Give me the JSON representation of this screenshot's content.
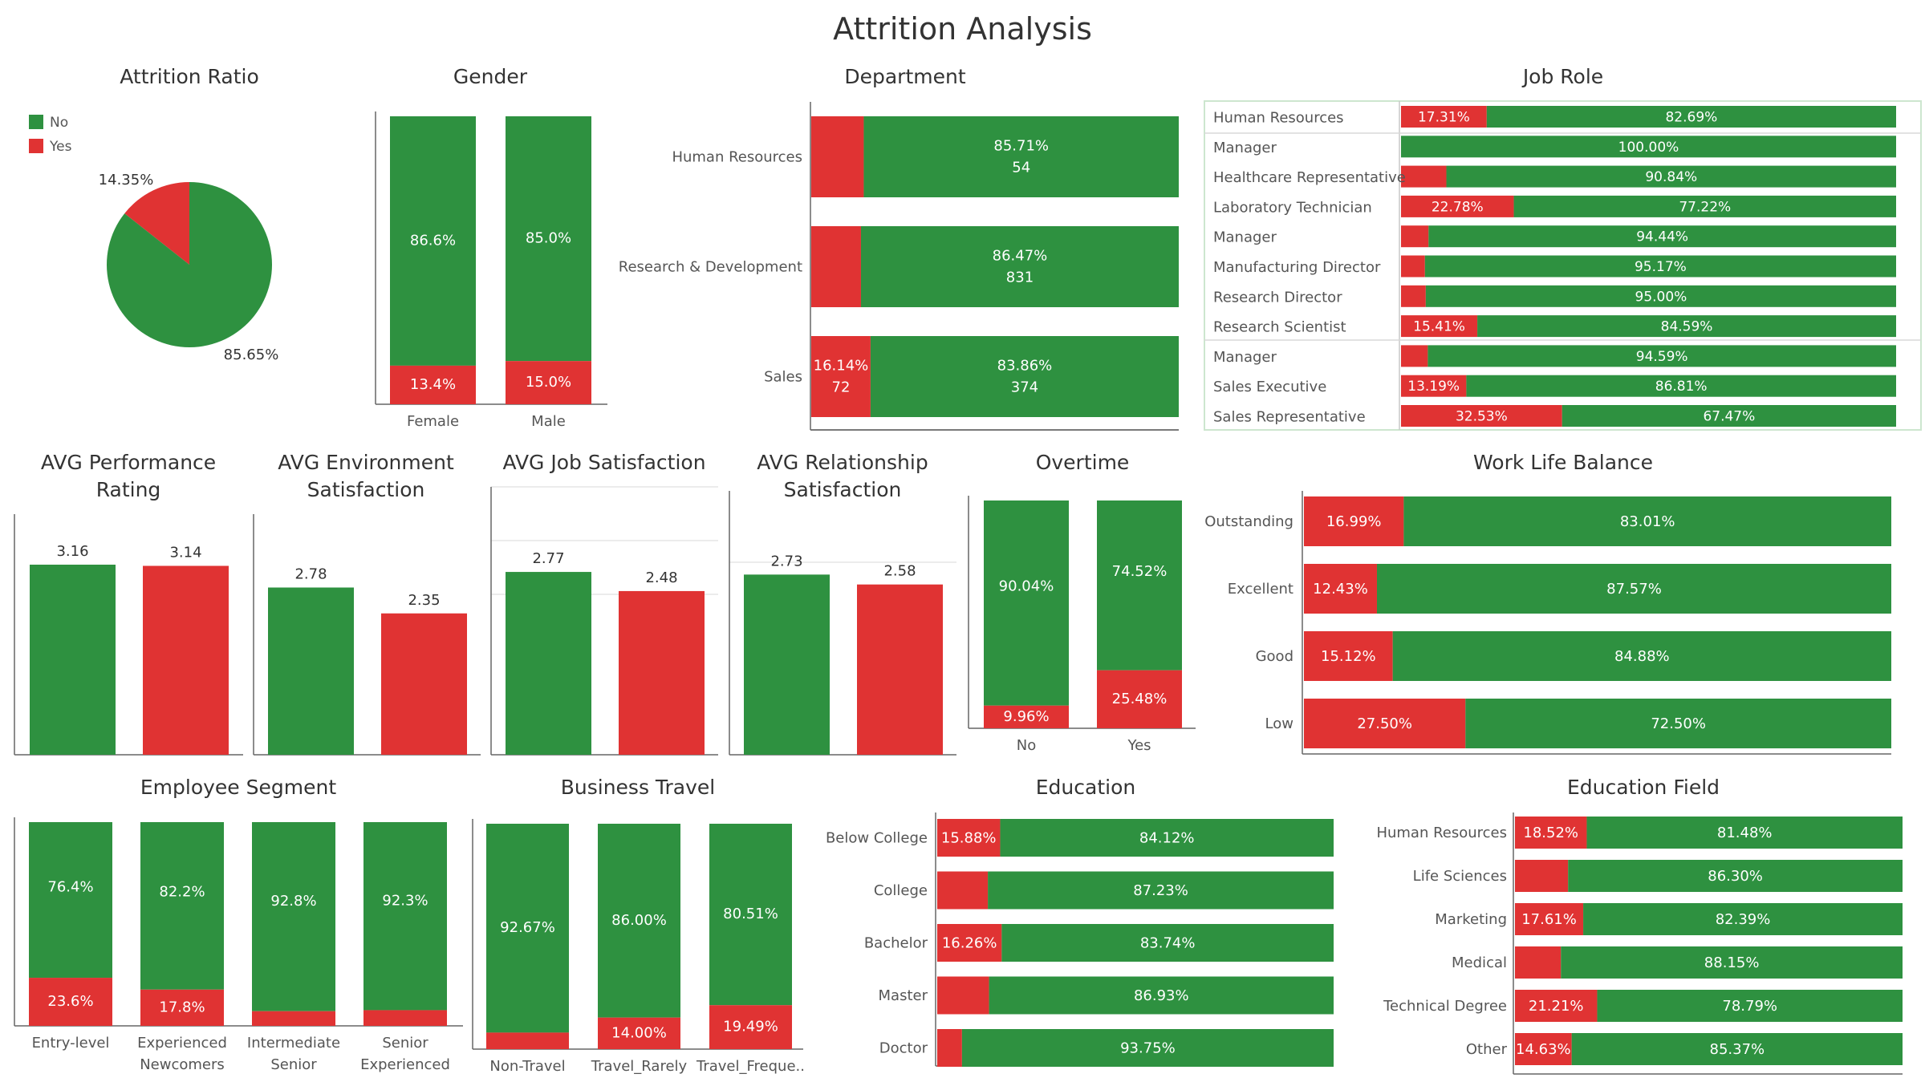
{
  "title": "Attrition Analysis",
  "colors": {
    "no": "#2e9140",
    "yes": "#e03333",
    "axis": "#666666",
    "grid": "#e6e6e6"
  },
  "chart_data": [
    {
      "id": "attrition-ratio",
      "type": "pie",
      "title": "Attrition Ratio",
      "legend": [
        "No",
        "Yes"
      ],
      "slices": [
        {
          "label": "No",
          "value": 85.65,
          "text": "85.65%"
        },
        {
          "label": "Yes",
          "value": 14.35,
          "text": "14.35%"
        }
      ]
    },
    {
      "id": "gender",
      "type": "bar",
      "stacked": true,
      "title": "Gender",
      "categories": [
        "Female",
        "Male"
      ],
      "no": [
        86.6,
        85.0
      ],
      "yes": [
        13.4,
        15.0
      ],
      "no_labels": [
        "86.6%",
        "85.0%"
      ],
      "yes_labels": [
        "13.4%",
        "15.0%"
      ]
    },
    {
      "id": "department",
      "type": "bar",
      "stacked": true,
      "orientation": "horizontal",
      "title": "Department",
      "categories": [
        "Human Resources",
        "Research & Development",
        "Sales"
      ],
      "no": [
        85.71,
        86.47,
        83.86
      ],
      "yes": [
        14.29,
        13.53,
        16.14
      ],
      "no_labels": [
        "85.71%",
        "86.47%",
        "83.86%"
      ],
      "no_counts": [
        "54",
        "831",
        "374"
      ],
      "yes_labels": [
        "",
        "",
        "16.14%"
      ],
      "yes_counts": [
        "",
        "",
        "72"
      ]
    },
    {
      "id": "job-role",
      "type": "bar",
      "stacked": true,
      "orientation": "horizontal",
      "title": "Job Role",
      "categories": [
        "Human Resources",
        "Manager",
        "Healthcare Representative",
        "Laboratory Technician",
        "Manager",
        "Manufacturing Director",
        "Research Director",
        "Research Scientist",
        "Manager",
        "Sales Executive",
        "Sales Representative"
      ],
      "no": [
        82.69,
        100.0,
        90.84,
        77.22,
        94.44,
        95.17,
        95.0,
        84.59,
        94.59,
        86.81,
        67.47
      ],
      "yes": [
        17.31,
        0,
        9.16,
        22.78,
        5.56,
        4.83,
        5.0,
        15.41,
        5.41,
        13.19,
        32.53
      ],
      "no_labels": [
        "82.69%",
        "100.00%",
        "90.84%",
        "77.22%",
        "94.44%",
        "95.17%",
        "95.00%",
        "84.59%",
        "94.59%",
        "86.81%",
        "67.47%"
      ],
      "yes_labels": [
        "17.31%",
        "",
        "",
        "22.78%",
        "",
        "",
        "",
        "15.41%",
        "",
        "13.19%",
        "32.53%"
      ]
    },
    {
      "id": "avg-performance",
      "type": "bar",
      "title": "AVG Performance Rating",
      "title_lines": [
        "AVG Performance",
        "Rating"
      ],
      "categories": [
        "No",
        "Yes"
      ],
      "values": [
        3.16,
        3.14
      ],
      "labels": [
        "3.16",
        "3.14"
      ],
      "ylim": [
        0,
        4
      ]
    },
    {
      "id": "avg-environment",
      "type": "bar",
      "title": "AVG Environment Satisfaction",
      "title_lines": [
        "AVG Environment",
        "Satisfaction"
      ],
      "categories": [
        "No",
        "Yes"
      ],
      "values": [
        2.78,
        2.35
      ],
      "labels": [
        "2.78",
        "2.35"
      ],
      "ylim": [
        0,
        4
      ]
    },
    {
      "id": "avg-job-satisfaction",
      "type": "bar",
      "title": "AVG Job Satisfaction",
      "title_lines": [
        "AVG Job Satisfaction"
      ],
      "categories": [
        "No",
        "Yes"
      ],
      "values": [
        2.77,
        2.48
      ],
      "labels": [
        "2.77",
        "2.48"
      ],
      "ylim": [
        0,
        3.5
      ]
    },
    {
      "id": "avg-relationship",
      "type": "bar",
      "title": "AVG Relationship Satisfaction",
      "title_lines": [
        "AVG Relationship",
        "Satisfaction"
      ],
      "categories": [
        "No",
        "Yes"
      ],
      "values": [
        2.73,
        2.58
      ],
      "labels": [
        "2.73",
        "2.58"
      ],
      "ylim": [
        0,
        3.5
      ]
    },
    {
      "id": "overtime",
      "type": "bar",
      "stacked": true,
      "title": "Overtime",
      "categories": [
        "No",
        "Yes"
      ],
      "no": [
        90.04,
        74.52
      ],
      "yes": [
        9.96,
        25.48
      ],
      "no_labels": [
        "90.04%",
        "74.52%"
      ],
      "yes_labels": [
        "9.96%",
        "25.48%"
      ]
    },
    {
      "id": "work-life-balance",
      "type": "bar",
      "stacked": true,
      "orientation": "horizontal",
      "title": "Work Life Balance",
      "categories": [
        "Outstanding",
        "Excellent",
        "Good",
        "Low"
      ],
      "no": [
        83.01,
        87.57,
        84.88,
        72.5
      ],
      "yes": [
        16.99,
        12.43,
        15.12,
        27.5
      ],
      "no_labels": [
        "83.01%",
        "87.57%",
        "84.88%",
        "72.50%"
      ],
      "yes_labels": [
        "16.99%",
        "12.43%",
        "15.12%",
        "27.50%"
      ]
    },
    {
      "id": "employee-segment",
      "type": "bar",
      "stacked": true,
      "title": "Employee Segment",
      "categories": [
        "Entry-level",
        "Experienced Newcomers",
        "Intermediate Senior",
        "Senior Experienced"
      ],
      "category_lines": [
        [
          "Entry-level"
        ],
        [
          "Experienced",
          "Newcomers"
        ],
        [
          "Intermediate",
          "Senior"
        ],
        [
          "Senior",
          "Experienced"
        ]
      ],
      "no": [
        76.4,
        82.2,
        92.8,
        92.3
      ],
      "yes": [
        23.6,
        17.8,
        7.2,
        7.7
      ],
      "no_labels": [
        "76.4%",
        "82.2%",
        "92.8%",
        "92.3%"
      ],
      "yes_labels": [
        "23.6%",
        "17.8%",
        "",
        ""
      ]
    },
    {
      "id": "business-travel",
      "type": "bar",
      "stacked": true,
      "title": "Business Travel",
      "categories": [
        "Non-Travel",
        "Travel_Rarely",
        "Travel_Freque.."
      ],
      "no": [
        92.67,
        86.0,
        80.51
      ],
      "yes": [
        7.33,
        14.0,
        19.49
      ],
      "no_labels": [
        "92.67%",
        "86.00%",
        "80.51%"
      ],
      "yes_labels": [
        "",
        "14.00%",
        "19.49%"
      ]
    },
    {
      "id": "education",
      "type": "bar",
      "stacked": true,
      "orientation": "horizontal",
      "title": "Education",
      "categories": [
        "Below College",
        "College",
        "Bachelor",
        "Master",
        "Doctor"
      ],
      "no": [
        84.12,
        87.23,
        83.74,
        86.93,
        93.75
      ],
      "yes": [
        15.88,
        12.77,
        16.26,
        13.07,
        6.25
      ],
      "no_labels": [
        "84.12%",
        "87.23%",
        "83.74%",
        "86.93%",
        "93.75%"
      ],
      "yes_labels": [
        "15.88%",
        "",
        "16.26%",
        "",
        ""
      ]
    },
    {
      "id": "education-field",
      "type": "bar",
      "stacked": true,
      "orientation": "horizontal",
      "title": "Education Field",
      "categories": [
        "Human Resources",
        "Life Sciences",
        "Marketing",
        "Medical",
        "Technical Degree",
        "Other"
      ],
      "no": [
        81.48,
        86.3,
        82.39,
        88.15,
        78.79,
        85.37
      ],
      "yes": [
        18.52,
        13.7,
        17.61,
        11.85,
        21.21,
        14.63
      ],
      "no_labels": [
        "81.48%",
        "86.30%",
        "82.39%",
        "88.15%",
        "78.79%",
        "85.37%"
      ],
      "yes_labels": [
        "18.52%",
        "",
        "17.61%",
        "",
        "21.21%",
        "14.63%"
      ]
    }
  ]
}
